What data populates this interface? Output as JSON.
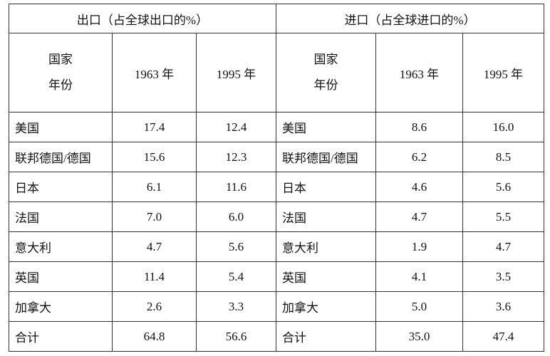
{
  "table": {
    "header_groups": [
      "出口（占全球出口的%）",
      "进口（占全球进口的%）"
    ],
    "subheaders": [
      [
        "国家",
        "年份"
      ],
      "1963 年",
      "1995 年",
      [
        "国家",
        "年份"
      ],
      "1963 年",
      "1995 年"
    ],
    "rows": [
      [
        "美国",
        "17.4",
        "12.4",
        "美国",
        "8.6",
        "16.0"
      ],
      [
        "联邦德国/德国",
        "15.6",
        "12.3",
        "联邦德国/德国",
        "6.2",
        "8.5"
      ],
      [
        "日本",
        "6.1",
        "11.6",
        "日本",
        "4.6",
        "5.6"
      ],
      [
        "法国",
        "7.0",
        "6.0",
        "法国",
        "4.7",
        "5.5"
      ],
      [
        "意大利",
        "4.7",
        "5.6",
        "意大利",
        "1.9",
        "4.7"
      ],
      [
        "英国",
        "11.4",
        "5.4",
        "英国",
        "4.1",
        "3.5"
      ],
      [
        "加拿大",
        "2.6",
        "3.3",
        "加拿大",
        "5.0",
        "3.6"
      ],
      [
        "合计",
        "64.8",
        "56.6",
        "合计",
        "35.0",
        "47.4"
      ]
    ]
  }
}
